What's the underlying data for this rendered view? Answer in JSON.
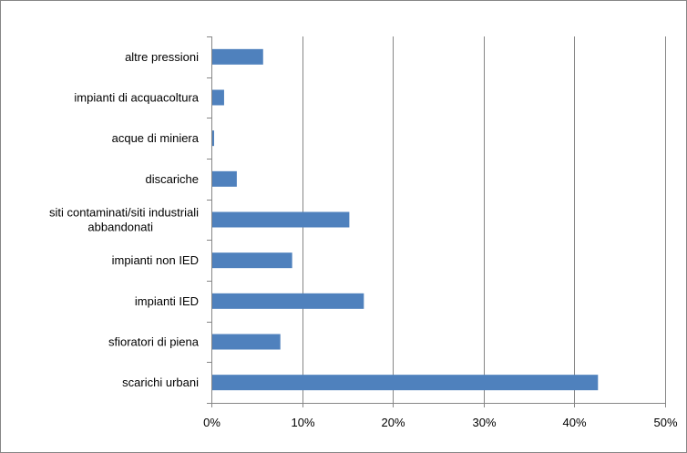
{
  "chart_data": {
    "type": "bar",
    "orientation": "horizontal",
    "categories": [
      "scarichi urbani",
      "sfioratori di piena",
      "impianti IED",
      "impianti non IED",
      [
        "siti contaminati/siti industriali",
        "abbandonati"
      ],
      "discariche",
      "acque di miniera",
      "impianti di acquacoltura",
      "altre pressioni"
    ],
    "values": [
      42.5,
      7.5,
      16.7,
      8.8,
      15.1,
      2.7,
      0.2,
      1.3,
      5.6
    ],
    "x_ticks": [
      "0%",
      "10%",
      "20%",
      "30%",
      "40%",
      "50%"
    ],
    "xlim": [
      0,
      50
    ],
    "title": "",
    "xlabel": "",
    "ylabel": "",
    "grid": "vertical",
    "legend": "none",
    "colors": {
      "bar": "#4f81bd",
      "grid": "#868686",
      "axis": "#868686"
    }
  }
}
